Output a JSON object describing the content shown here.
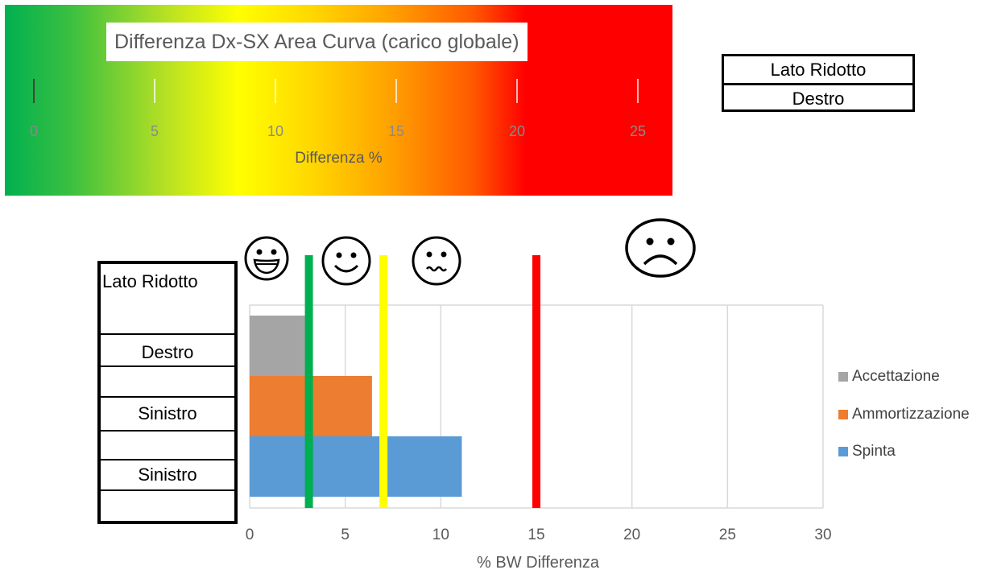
{
  "scale_panel": {
    "title": "Differenza Dx-SX Area Curva (carico globale)",
    "ticks": [
      "0",
      "5",
      "10",
      "15",
      "20",
      "25"
    ],
    "xlabel": "Differenza %",
    "gradient_colors": [
      "#00b050",
      "#ffff00",
      "#ffa000",
      "#ff0000"
    ]
  },
  "side_box": {
    "header": "Lato Ridotto",
    "value": "Destro"
  },
  "left_table": {
    "header": "Lato Ridotto",
    "rows": [
      "Destro",
      "Sinistro",
      "Sinistro"
    ]
  },
  "threshold_icons": [
    "very-happy-face-icon",
    "smiley-face-icon",
    "uneasy-face-icon",
    "sad-face-icon"
  ],
  "chart_data": {
    "type": "bar",
    "orientation": "horizontal",
    "stacked": false,
    "categories": [
      "Spinta",
      "Ammortizzazione",
      "Accettazione"
    ],
    "series": [
      {
        "name": "Accettazione",
        "value": 2.9,
        "color": "#a5a5a5"
      },
      {
        "name": "Ammortizzazione",
        "value": 6.4,
        "color": "#ed7d31"
      },
      {
        "name": "Spinta",
        "value": 11.1,
        "color": "#5b9bd5"
      }
    ],
    "thresholds": [
      {
        "value": 3.1,
        "color": "#00b050"
      },
      {
        "value": 7,
        "color": "#ffff00"
      },
      {
        "value": 15,
        "color": "#ff0000"
      }
    ],
    "xlim": [
      0,
      30
    ],
    "xticks": [
      "0",
      "5",
      "10",
      "15",
      "20",
      "25",
      "30"
    ],
    "xlabel": "% BW Differenza",
    "grid": true,
    "legend_position": "right"
  }
}
